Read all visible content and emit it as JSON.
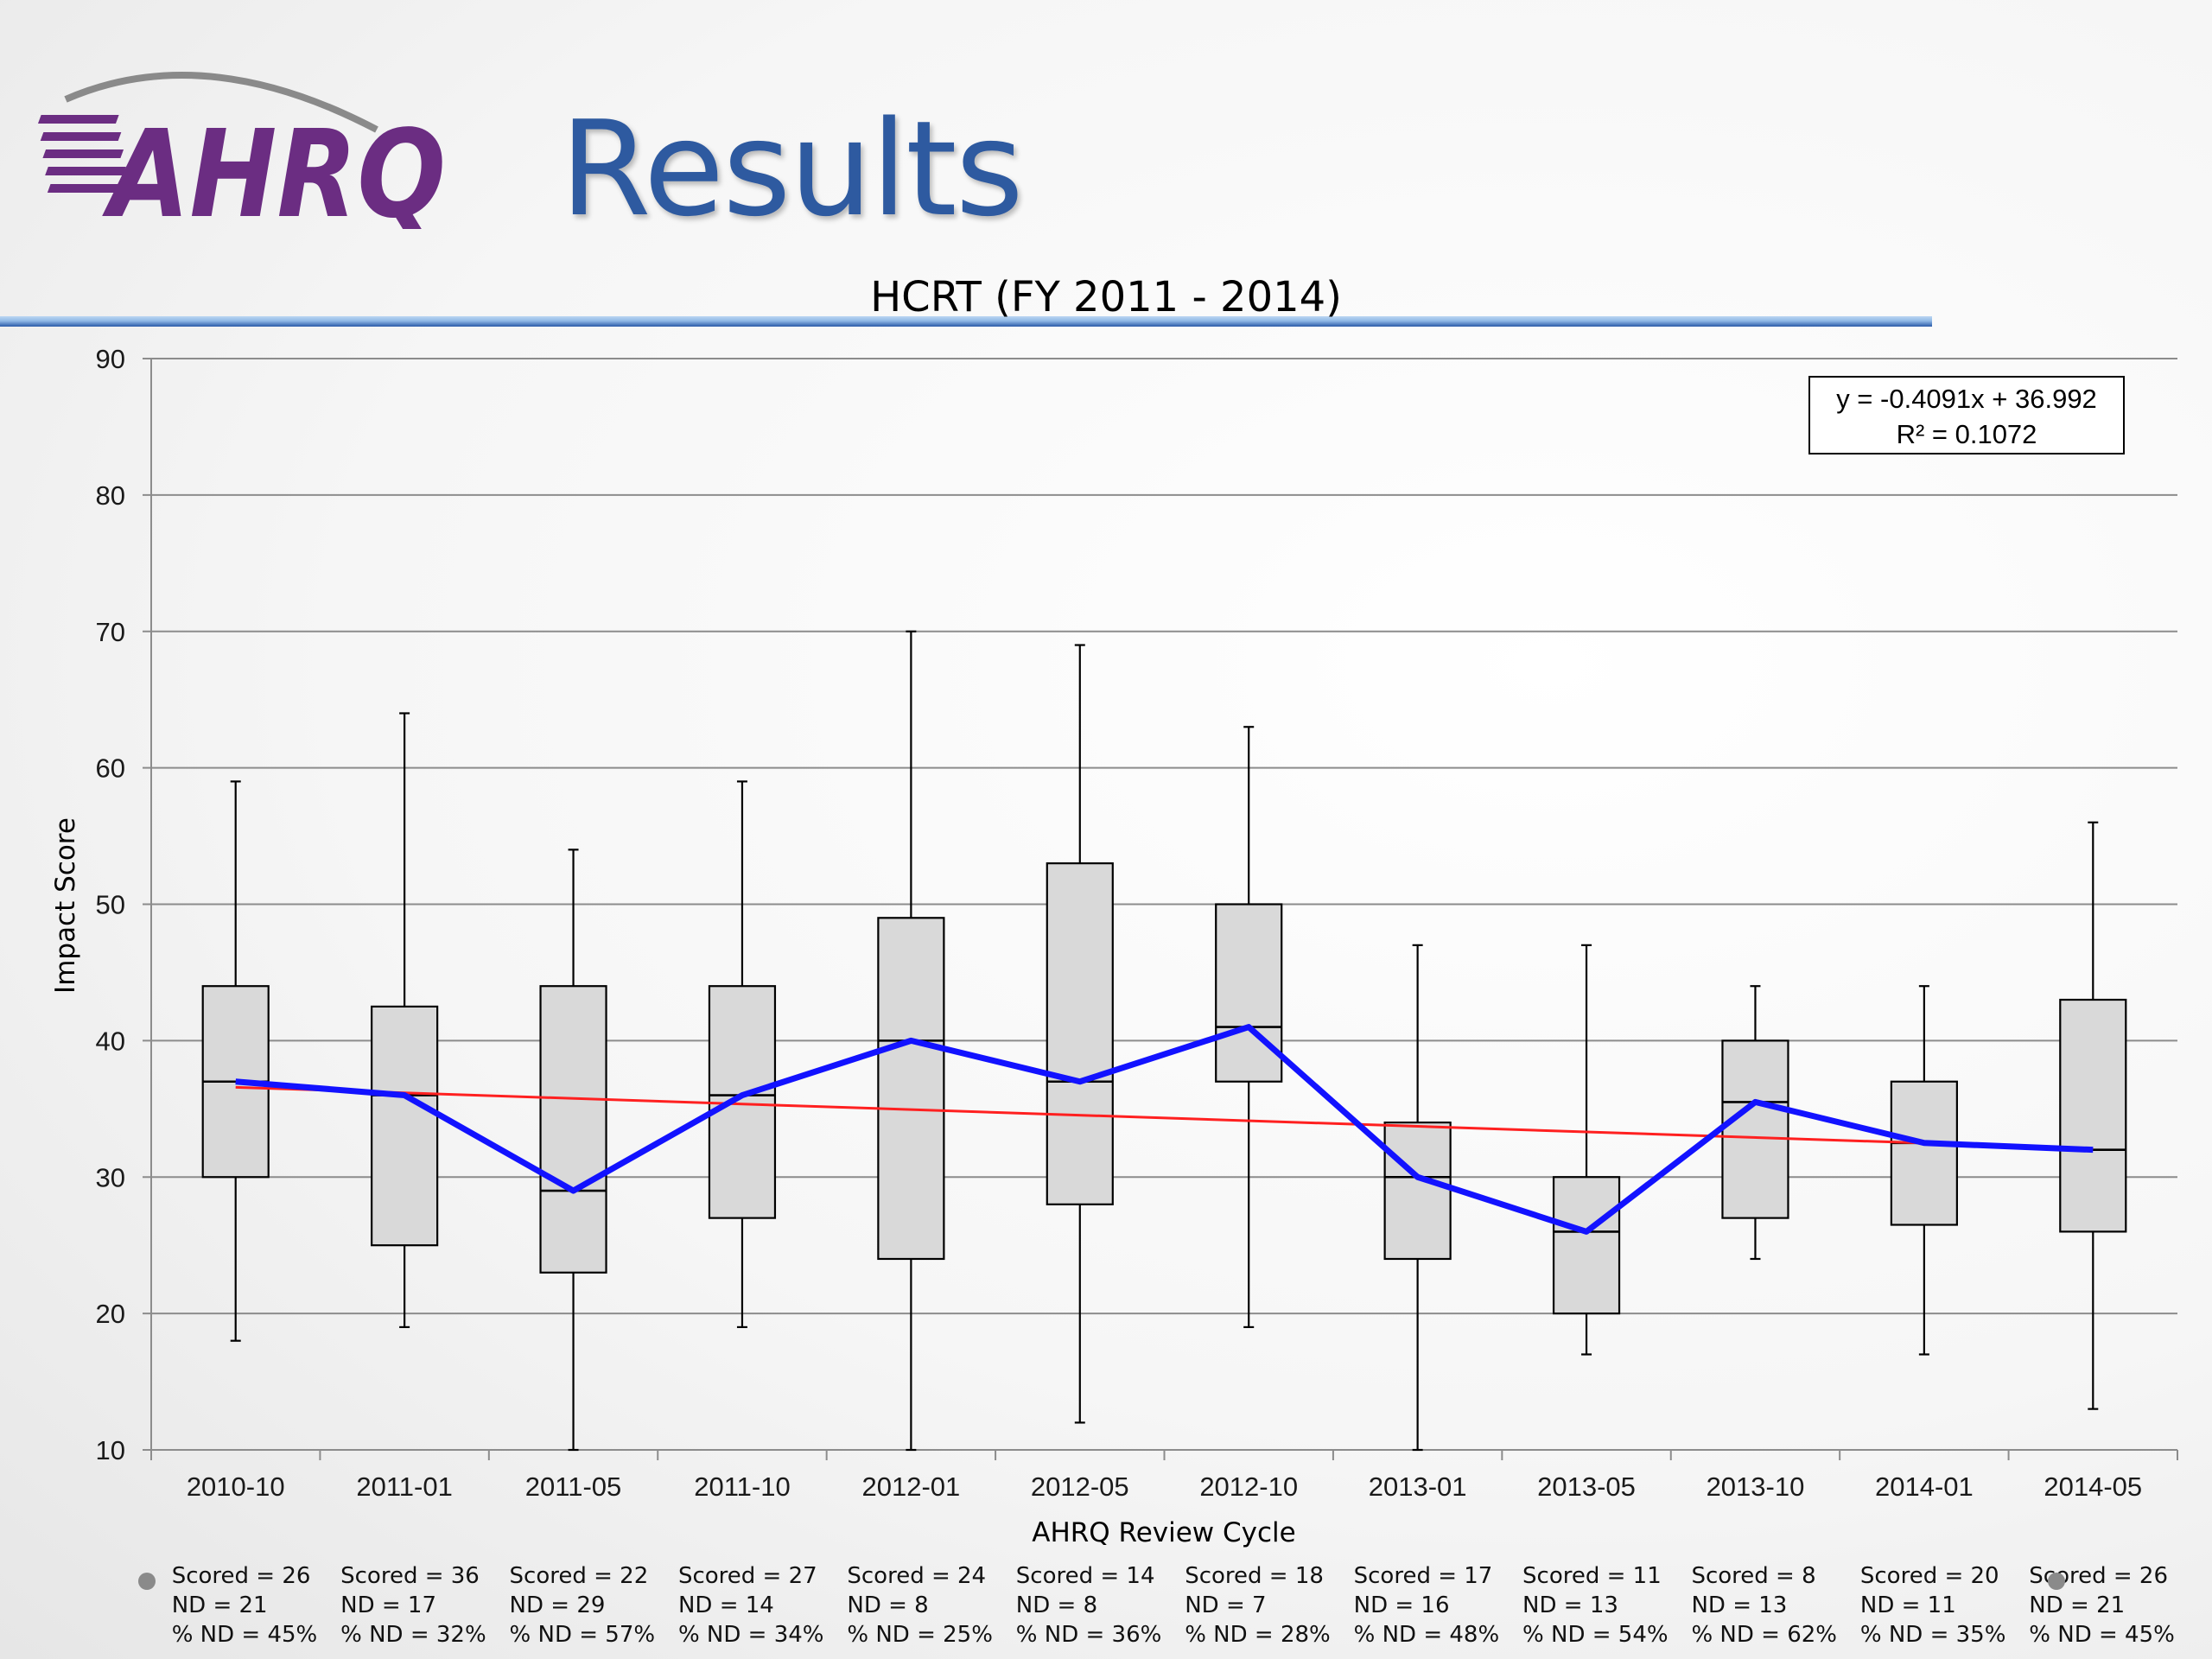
{
  "slide": {
    "title": "Results",
    "logo_text": "AHRQ",
    "colors": {
      "title": "#2e5aa0",
      "logo": "#6b2d82",
      "median_line": "#1212ff",
      "trend_line": "#ff2020",
      "box_fill": "#d9d9d9"
    }
  },
  "chart_data": {
    "type": "box",
    "title": "HCRT (FY 2011 - 2014)",
    "xlabel": "AHRQ Review Cycle",
    "ylabel": "Impact Score",
    "ylim": [
      10,
      90
    ],
    "yticks": [
      10,
      20,
      30,
      40,
      50,
      60,
      70,
      80,
      90
    ],
    "grid": true,
    "categories": [
      "2010-10",
      "2011-01",
      "2011-05",
      "2011-10",
      "2012-01",
      "2012-05",
      "2012-10",
      "2013-01",
      "2013-05",
      "2013-10",
      "2014-01",
      "2014-05"
    ],
    "boxes": [
      {
        "min": 18,
        "q1": 30,
        "median": 37,
        "q3": 44,
        "max": 59
      },
      {
        "min": 19,
        "q1": 25,
        "median": 36,
        "q3": 42.5,
        "max": 64
      },
      {
        "min": 10,
        "q1": 23,
        "median": 29,
        "q3": 44,
        "max": 54
      },
      {
        "min": 19,
        "q1": 27,
        "median": 36,
        "q3": 44,
        "max": 59
      },
      {
        "min": 10,
        "q1": 24,
        "median": 40,
        "q3": 49,
        "max": 70
      },
      {
        "min": 12,
        "q1": 28,
        "median": 37,
        "q3": 53,
        "max": 69
      },
      {
        "min": 19,
        "q1": 37,
        "median": 41,
        "q3": 50,
        "max": 63
      },
      {
        "min": 10,
        "q1": 24,
        "median": 30,
        "q3": 34,
        "max": 47
      },
      {
        "min": 17,
        "q1": 20,
        "median": 26,
        "q3": 30,
        "max": 47
      },
      {
        "min": 24,
        "q1": 27,
        "median": 35.5,
        "q3": 40,
        "max": 44
      },
      {
        "min": 17,
        "q1": 26.5,
        "median": 32.5,
        "q3": 37,
        "max": 44
      },
      {
        "min": 13,
        "q1": 26,
        "median": 32,
        "q3": 43,
        "max": 56
      }
    ],
    "series": [
      {
        "values": [
          37,
          36,
          29,
          36,
          40,
          37,
          41,
          30,
          26,
          35.5,
          32.5,
          32
        ]
      }
    ],
    "trendline": {
      "slope": -0.4091,
      "intercept": 36.992,
      "equation": "y = -0.4091x + 36.992",
      "r_squared": "R² = 0.1072"
    },
    "category_stats": [
      {
        "scored": "Scored = 26",
        "nd": "ND = 21",
        "pct": "% ND = 45%"
      },
      {
        "scored": "Scored = 36",
        "nd": "ND = 17",
        "pct": "% ND = 32%"
      },
      {
        "scored": "Scored = 22",
        "nd": "ND = 29",
        "pct": "% ND = 57%"
      },
      {
        "scored": "Scored = 27",
        "nd": "ND = 14",
        "pct": "% ND = 34%"
      },
      {
        "scored": "Scored = 24",
        "nd": "ND = 8",
        "pct": "% ND = 25%"
      },
      {
        "scored": "Scored = 14",
        "nd": "ND = 8",
        "pct": "% ND = 36%"
      },
      {
        "scored": "Scored = 18",
        "nd": "ND = 7",
        "pct": "% ND = 28%"
      },
      {
        "scored": "Scored = 17",
        "nd": "ND = 16",
        "pct": "% ND = 48%"
      },
      {
        "scored": "Scored = 11",
        "nd": "ND = 13",
        "pct": "% ND = 54%"
      },
      {
        "scored": "Scored = 8",
        "nd": "ND = 13",
        "pct": "% ND = 62%"
      },
      {
        "scored": "Scored = 20",
        "nd": "ND = 11",
        "pct": "% ND = 35%"
      },
      {
        "scored": "Scored = 26",
        "nd": "ND = 21",
        "pct": "% ND = 45%"
      }
    ]
  }
}
